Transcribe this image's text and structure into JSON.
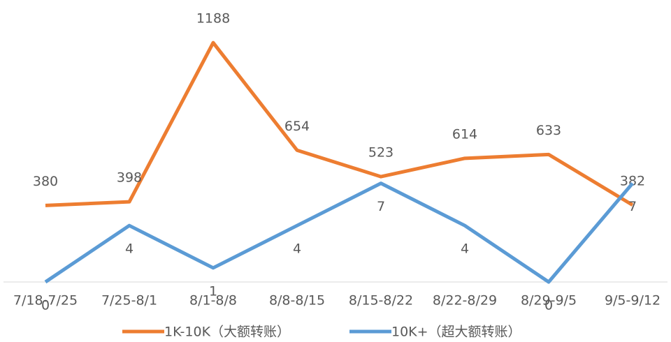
{
  "chart_data": {
    "type": "line",
    "categories": [
      "7/18-7/25",
      "7/25-8/1",
      "8/1-8/8",
      "8/8-8/15",
      "8/15-8/22",
      "8/22-8/29",
      "8/29-9/5",
      "9/5-9/12"
    ],
    "series": [
      {
        "name": "1K-10K（大额转账）",
        "color": "#ed7d31",
        "values": [
          380,
          398,
          1188,
          654,
          523,
          614,
          633,
          382
        ]
      },
      {
        "name": "10K+（超大额转账）",
        "color": "#5b9bd5",
        "axis": "y2",
        "values": [
          0,
          4,
          1,
          4,
          7,
          4,
          0,
          7
        ]
      }
    ],
    "ylim": [
      0,
      1400
    ],
    "y2lim": [
      0,
      20
    ],
    "legend": "bottom"
  }
}
